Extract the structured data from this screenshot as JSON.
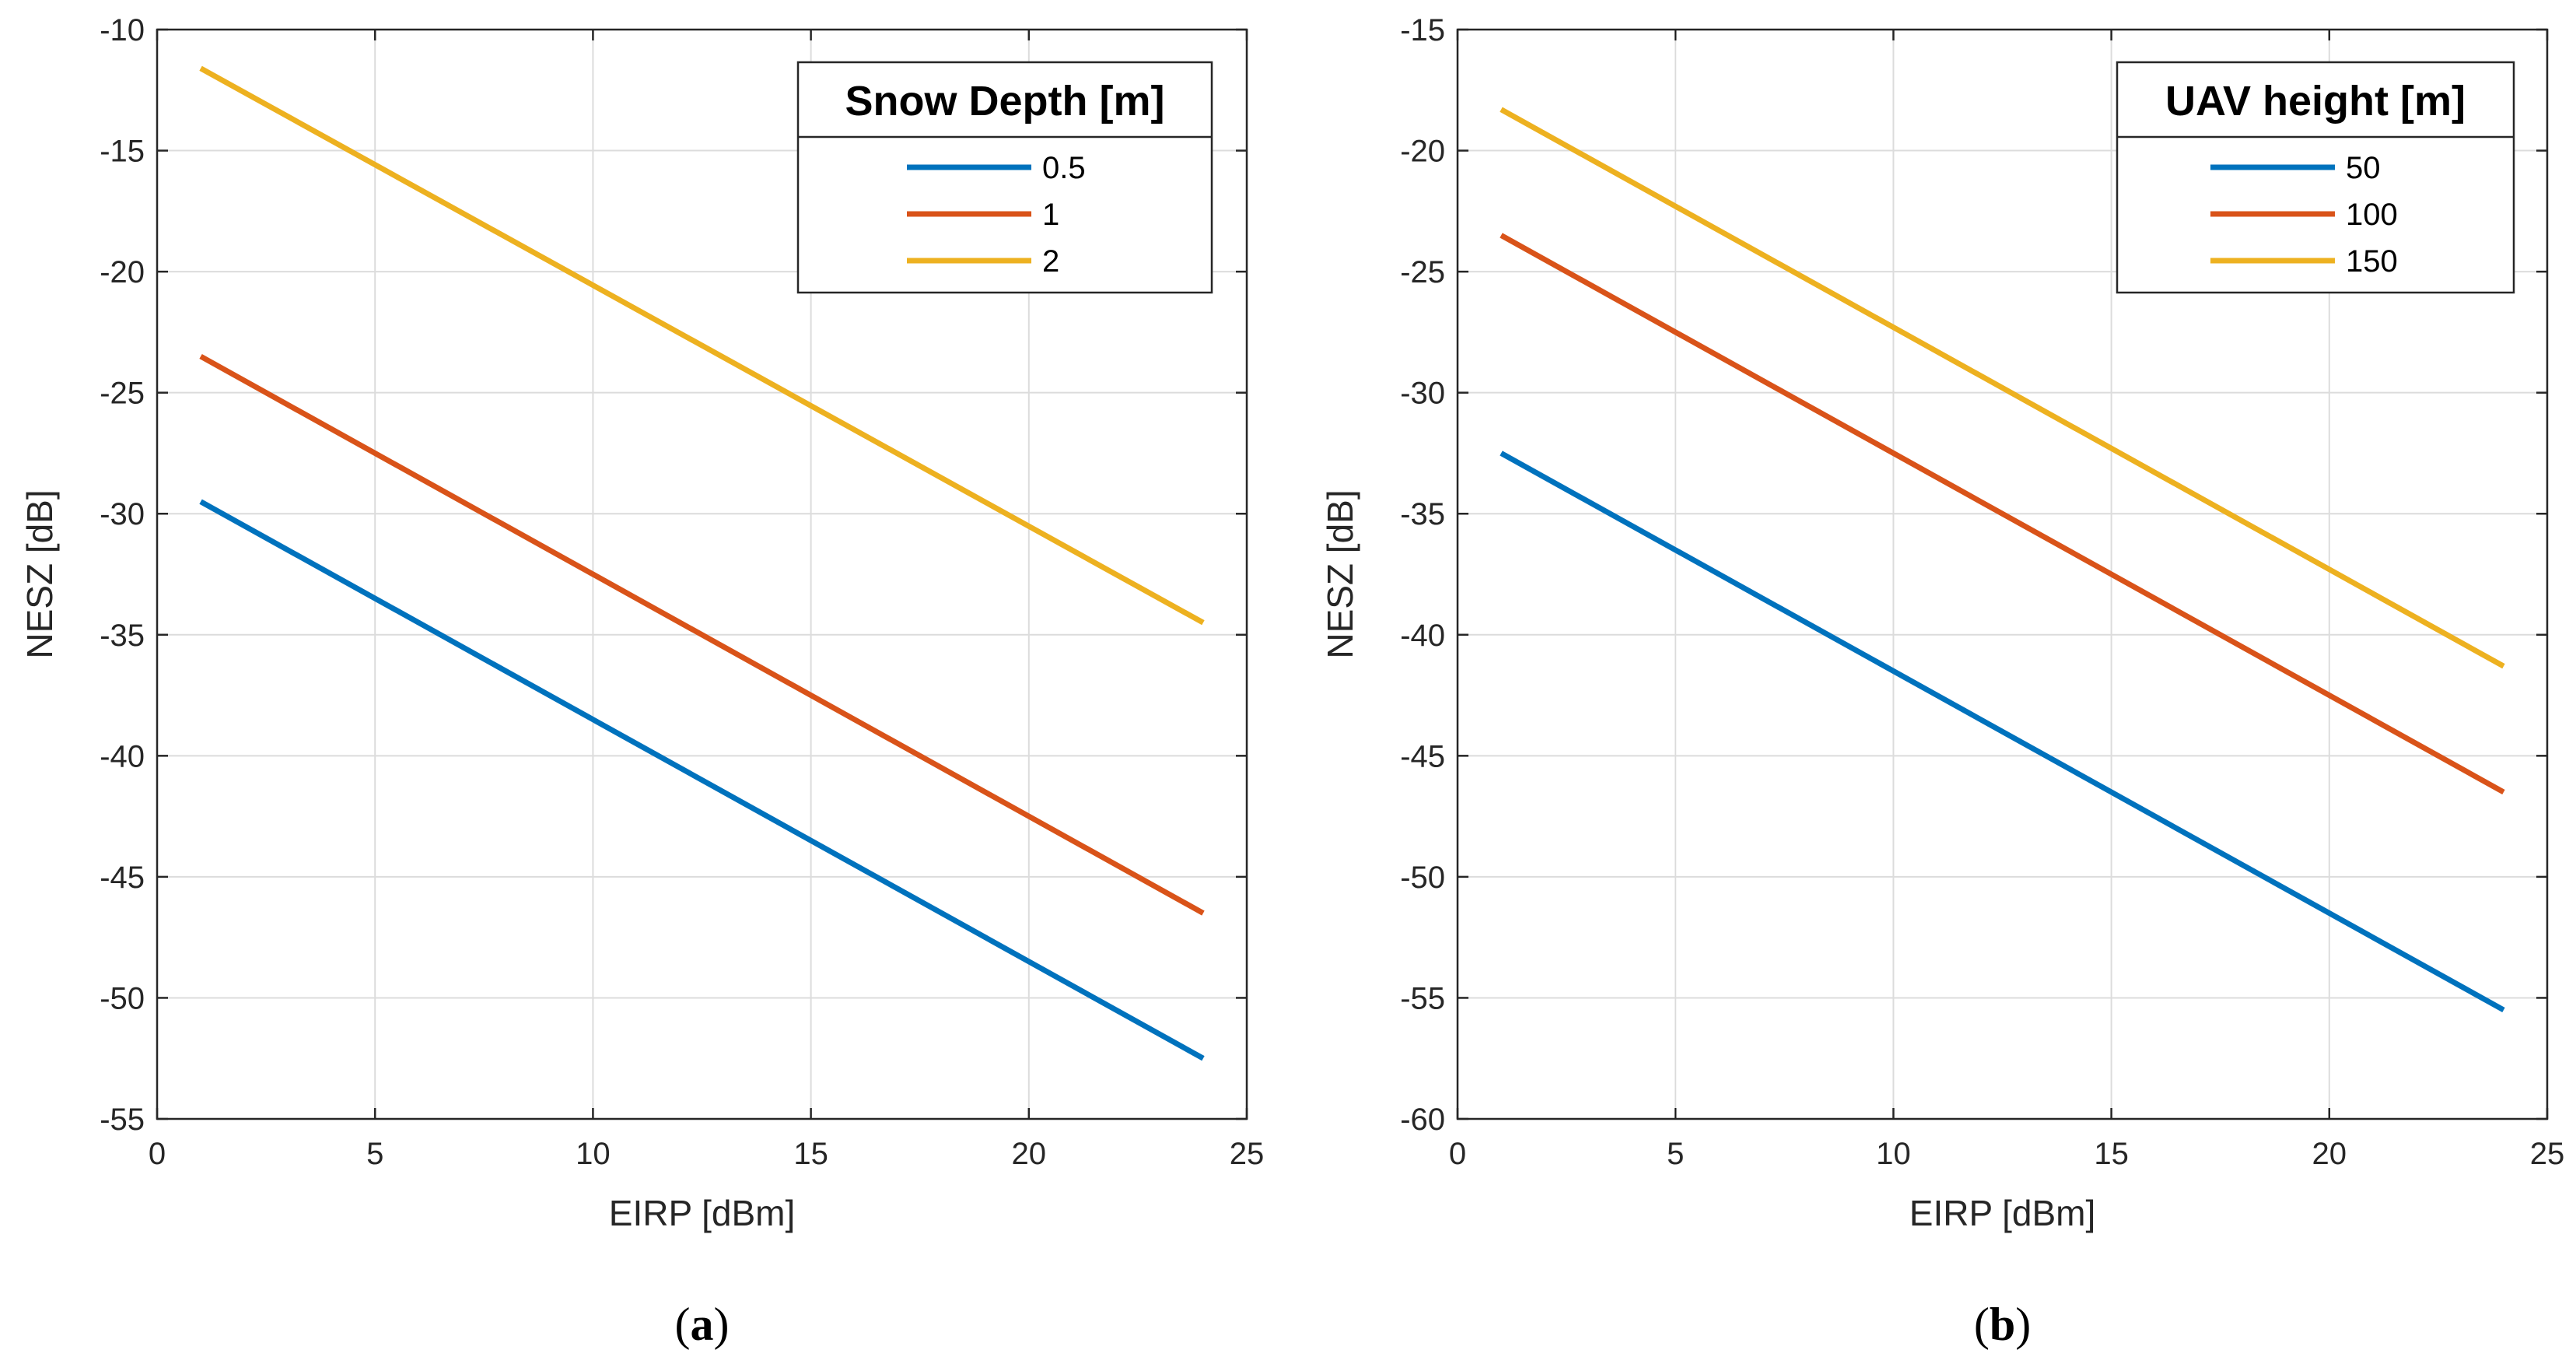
{
  "chart_data": [
    {
      "type": "line",
      "panel_label": "a",
      "title": "",
      "xlabel": "EIRP [dBm]",
      "ylabel": "NESZ [dB]",
      "xlim": [
        0,
        25
      ],
      "ylim": [
        -55,
        -10
      ],
      "xticks": [
        0,
        5,
        10,
        15,
        20,
        25
      ],
      "yticks": [
        -55,
        -50,
        -45,
        -40,
        -35,
        -30,
        -25,
        -20,
        -15,
        -10
      ],
      "grid": true,
      "legend": {
        "title": "Snow Depth [m]",
        "position": "top-right"
      },
      "series": [
        {
          "name": "0.5",
          "color": "#0072BD",
          "x": [
            1,
            24
          ],
          "y": [
            -29.5,
            -52.5
          ]
        },
        {
          "name": "1",
          "color": "#D95319",
          "x": [
            1,
            24
          ],
          "y": [
            -23.5,
            -46.5
          ]
        },
        {
          "name": "2",
          "color": "#EDB120",
          "x": [
            1,
            24
          ],
          "y": [
            -11.6,
            -34.5
          ]
        }
      ]
    },
    {
      "type": "line",
      "panel_label": "b",
      "title": "",
      "xlabel": "EIRP [dBm]",
      "ylabel": "NESZ [dB]",
      "xlim": [
        0,
        25
      ],
      "ylim": [
        -60,
        -15
      ],
      "xticks": [
        0,
        5,
        10,
        15,
        20,
        25
      ],
      "yticks": [
        -60,
        -55,
        -50,
        -45,
        -40,
        -35,
        -30,
        -25,
        -20,
        -15
      ],
      "grid": true,
      "legend": {
        "title": "UAV height [m]",
        "position": "top-right"
      },
      "series": [
        {
          "name": "50",
          "color": "#0072BD",
          "x": [
            1,
            24
          ],
          "y": [
            -32.5,
            -55.5
          ]
        },
        {
          "name": "100",
          "color": "#D95319",
          "x": [
            1,
            24
          ],
          "y": [
            -23.5,
            -46.5
          ]
        },
        {
          "name": "150",
          "color": "#EDB120",
          "x": [
            1,
            24
          ],
          "y": [
            -18.3,
            -41.3
          ]
        }
      ]
    }
  ]
}
